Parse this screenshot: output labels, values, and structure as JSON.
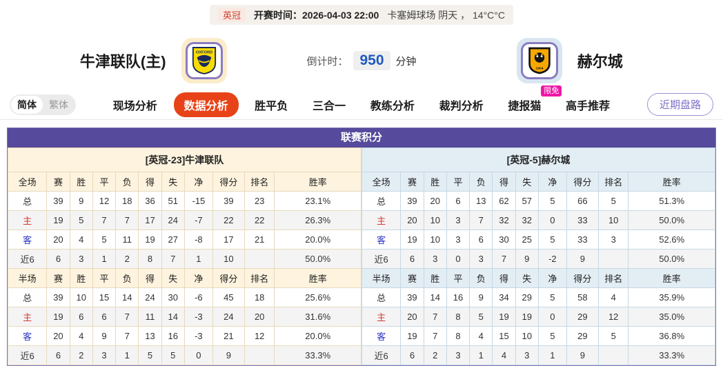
{
  "match_bar": {
    "league": "英冠",
    "kickoff_label": "开赛时间：",
    "kickoff_time": "2026-04-03 22:00",
    "venue_weather": "卡塞姆球场  阴天 ， 14°C°C"
  },
  "teams": {
    "home": {
      "name": "牛津联队(主)",
      "crest": "oxford-united-crest",
      "crest_text": "OXFORD"
    },
    "away": {
      "name": "赫尔城",
      "crest": "hull-city-crest",
      "crest_text": "1904"
    }
  },
  "countdown": {
    "label": "倒计时：",
    "value": "950",
    "unit": "分钟"
  },
  "nav": {
    "lang_toggle": {
      "simplified": "简体",
      "traditional": "繁体"
    },
    "tabs": [
      {
        "label": "现场分析",
        "active": false
      },
      {
        "label": "数据分析",
        "active": true
      },
      {
        "label": "胜平负",
        "active": false
      },
      {
        "label": "三合一",
        "active": false
      },
      {
        "label": "教练分析",
        "active": false
      },
      {
        "label": "裁判分析",
        "active": false
      },
      {
        "label": "捷报猫",
        "active": false,
        "badge": "限免"
      },
      {
        "label": "高手推荐",
        "active": false
      }
    ],
    "recent_button": "近期盘路"
  },
  "league_table": {
    "title": "联赛积分",
    "columns_full": [
      "全场",
      "赛",
      "胜",
      "平",
      "负",
      "得",
      "失",
      "净",
      "得分",
      "排名",
      "胜率"
    ],
    "columns_half": [
      "半场",
      "赛",
      "胜",
      "平",
      "负",
      "得",
      "失",
      "净",
      "得分",
      "排名",
      "胜率"
    ],
    "home": {
      "header": "[英冠-23]牛津联队",
      "full": [
        [
          "总",
          "39",
          "9",
          "12",
          "18",
          "36",
          "51",
          "-15",
          "39",
          "23",
          "23.1%"
        ],
        [
          "主",
          "19",
          "5",
          "7",
          "7",
          "17",
          "24",
          "-7",
          "22",
          "22",
          "26.3%"
        ],
        [
          "客",
          "20",
          "4",
          "5",
          "11",
          "19",
          "27",
          "-8",
          "17",
          "21",
          "20.0%"
        ],
        [
          "近6",
          "6",
          "3",
          "1",
          "2",
          "8",
          "7",
          "1",
          "10",
          "",
          "50.0%"
        ]
      ],
      "half": [
        [
          "总",
          "39",
          "10",
          "15",
          "14",
          "24",
          "30",
          "-6",
          "45",
          "18",
          "25.6%"
        ],
        [
          "主",
          "19",
          "6",
          "6",
          "7",
          "11",
          "14",
          "-3",
          "24",
          "20",
          "31.6%"
        ],
        [
          "客",
          "20",
          "4",
          "9",
          "7",
          "13",
          "16",
          "-3",
          "21",
          "12",
          "20.0%"
        ],
        [
          "近6",
          "6",
          "2",
          "3",
          "1",
          "5",
          "5",
          "0",
          "9",
          "",
          "33.3%"
        ]
      ]
    },
    "away": {
      "header": "[英冠-5]赫尔城",
      "full": [
        [
          "总",
          "39",
          "20",
          "6",
          "13",
          "62",
          "57",
          "5",
          "66",
          "5",
          "51.3%"
        ],
        [
          "主",
          "20",
          "10",
          "3",
          "7",
          "32",
          "32",
          "0",
          "33",
          "10",
          "50.0%"
        ],
        [
          "客",
          "19",
          "10",
          "3",
          "6",
          "30",
          "25",
          "5",
          "33",
          "3",
          "52.6%"
        ],
        [
          "近6",
          "6",
          "3",
          "0",
          "3",
          "7",
          "9",
          "-2",
          "9",
          "",
          "50.0%"
        ]
      ],
      "half": [
        [
          "总",
          "39",
          "14",
          "16",
          "9",
          "34",
          "29",
          "5",
          "58",
          "4",
          "35.9%"
        ],
        [
          "主",
          "20",
          "7",
          "8",
          "5",
          "19",
          "19",
          "0",
          "29",
          "12",
          "35.0%"
        ],
        [
          "客",
          "19",
          "7",
          "8",
          "4",
          "15",
          "10",
          "5",
          "29",
          "5",
          "36.8%"
        ],
        [
          "近6",
          "6",
          "2",
          "3",
          "1",
          "4",
          "3",
          "1",
          "9",
          "",
          "33.3%"
        ]
      ]
    }
  },
  "colors": {
    "accent_orange": "#e84318",
    "header_purple": "#554a9b",
    "home_panel_bg": "#fdf3de",
    "away_panel_bg": "#e3edf4",
    "countdown_blue": "#1f5ac0",
    "badge_pink": "#ef18a5",
    "league_red": "#cf4032",
    "home_row_red": "#d43c33",
    "away_row_blue": "#2b36c8"
  }
}
